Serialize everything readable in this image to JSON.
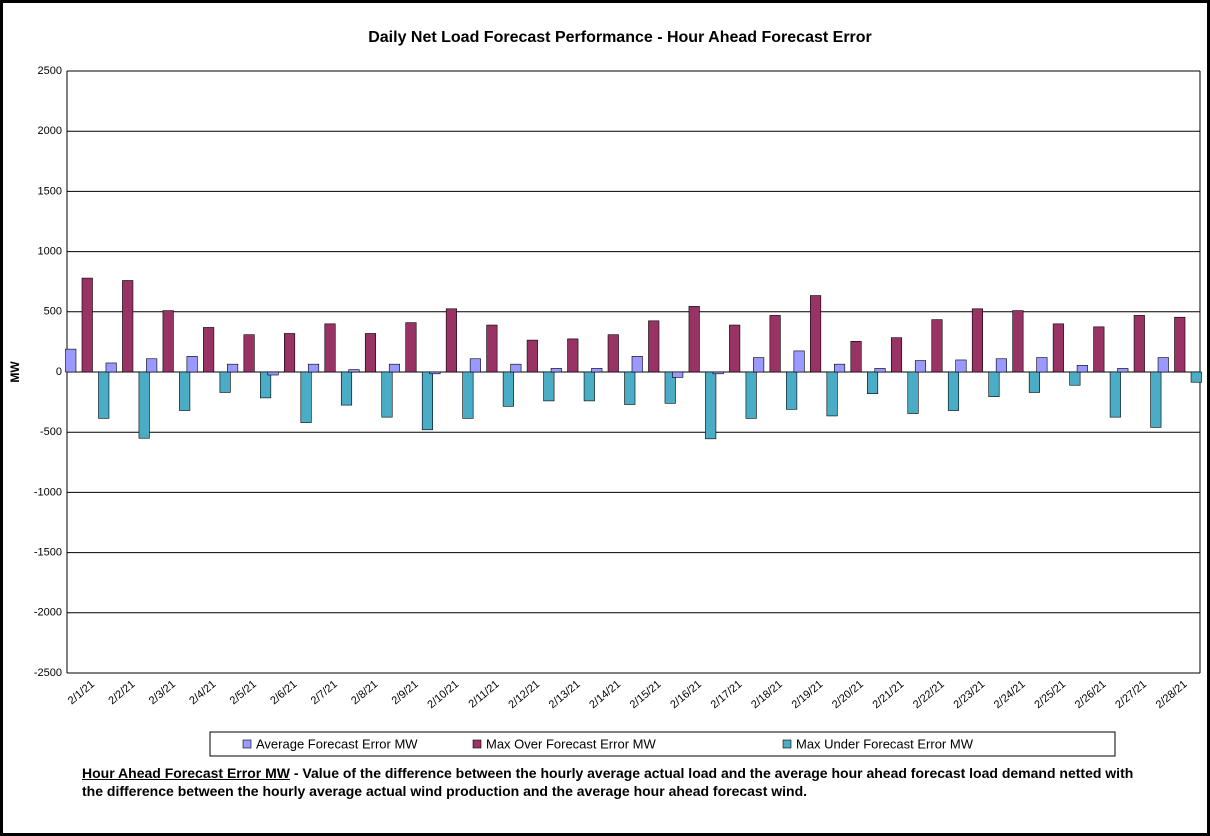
{
  "chart_data": {
    "type": "bar",
    "title": "Daily Net Load Forecast Performance - Hour Ahead Forecast Error",
    "y_label": "MW",
    "categories": [
      "2/1/21",
      "2/2/21",
      "2/3/21",
      "2/4/21",
      "2/5/21",
      "2/6/21",
      "2/7/21",
      "2/8/21",
      "2/9/21",
      "2/10/21",
      "2/11/21",
      "2/12/21",
      "2/13/21",
      "2/14/21",
      "2/15/21",
      "2/16/21",
      "2/17/21",
      "2/18/21",
      "2/19/21",
      "2/20/21",
      "2/21/21",
      "2/22/21",
      "2/23/21",
      "2/24/21",
      "2/25/21",
      "2/26/21",
      "2/27/21",
      "2/28/21"
    ],
    "series": [
      {
        "name": "Average Forecast Error MW",
        "color": "#9999ff",
        "values": [
          190,
          75,
          110,
          130,
          65,
          -25,
          65,
          20,
          65,
          -15,
          110,
          65,
          30,
          30,
          130,
          -45,
          -15,
          120,
          175,
          65,
          30,
          95,
          100,
          110,
          120,
          55,
          30,
          120
        ]
      },
      {
        "name": "Max Over Forecast Error MW",
        "color": "#993366",
        "values": [
          780,
          760,
          510,
          370,
          310,
          320,
          400,
          320,
          410,
          525,
          390,
          265,
          275,
          310,
          425,
          545,
          390,
          470,
          635,
          255,
          285,
          435,
          525,
          510,
          400,
          375,
          470,
          455
        ]
      },
      {
        "name": "Max Under Forecast Error MW",
        "color": "#4bacc6",
        "values": [
          -385,
          -550,
          -320,
          -170,
          -215,
          -420,
          -275,
          -375,
          -480,
          -385,
          -285,
          -240,
          -240,
          -270,
          -260,
          -555,
          -385,
          -310,
          -365,
          -180,
          -345,
          -320,
          -205,
          -170,
          -110,
          -375,
          -460,
          -85
        ]
      }
    ],
    "ylim": [
      -2500,
      2500
    ],
    "yticks": [
      -2500,
      -2000,
      -1500,
      -1000,
      -500,
      0,
      500,
      1000,
      1500,
      2000,
      2500
    ],
    "grid": true,
    "legend": "bottom",
    "footnote": {
      "term": "Hour Ahead Forecast Error MW",
      "text": " - Value of the difference between the hourly average actual load and the average hour ahead forecast load demand netted with the difference between the hourly average actual wind production and the average hour ahead forecast wind."
    }
  }
}
